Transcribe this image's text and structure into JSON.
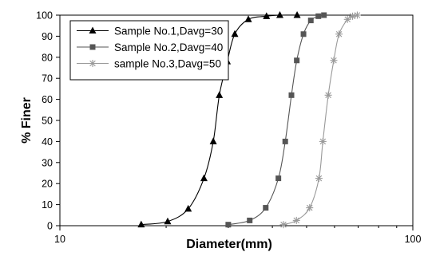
{
  "chart_data": {
    "type": "line",
    "xlabel": "Diameter(mm)",
    "ylabel": "% Finer",
    "xscale": "log",
    "xlim": [
      10,
      100
    ],
    "ylim": [
      0,
      100
    ],
    "x_ticks": [
      "10",
      "100"
    ],
    "y_ticks": [
      "0",
      "10",
      "20",
      "30",
      "40",
      "50",
      "60",
      "70",
      "80",
      "90",
      "100"
    ],
    "grid": false,
    "legend": "top-left",
    "series": [
      {
        "name": "Sample No.1,Davg=30",
        "color": "#000000",
        "marker": "triangle",
        "points": [
          {
            "x": 17.0,
            "y": 0.5
          },
          {
            "x": 20.2,
            "y": 2
          },
          {
            "x": 23.1,
            "y": 8
          },
          {
            "x": 25.6,
            "y": 22.5
          },
          {
            "x": 27.2,
            "y": 40
          },
          {
            "x": 28.3,
            "y": 62
          },
          {
            "x": 29.8,
            "y": 78
          },
          {
            "x": 31.3,
            "y": 91
          },
          {
            "x": 34.2,
            "y": 98
          },
          {
            "x": 38.5,
            "y": 99.5
          },
          {
            "x": 42.0,
            "y": 100
          },
          {
            "x": 47.0,
            "y": 100
          }
        ]
      },
      {
        "name": "Sample No.2,Davg=40",
        "color": "#555555",
        "marker": "square",
        "points": [
          {
            "x": 30.0,
            "y": 0.5
          },
          {
            "x": 34.5,
            "y": 2.5
          },
          {
            "x": 38.3,
            "y": 8.5
          },
          {
            "x": 41.6,
            "y": 22.5
          },
          {
            "x": 43.5,
            "y": 40
          },
          {
            "x": 45.3,
            "y": 62
          },
          {
            "x": 46.9,
            "y": 78.5
          },
          {
            "x": 49.0,
            "y": 91
          },
          {
            "x": 51.4,
            "y": 97.5
          },
          {
            "x": 54.0,
            "y": 99.5
          },
          {
            "x": 56.0,
            "y": 100
          }
        ]
      },
      {
        "name": "sample No.3,Davg=50",
        "color": "#999999",
        "marker": "asterisk",
        "points": [
          {
            "x": 43.0,
            "y": 0.5
          },
          {
            "x": 46.8,
            "y": 2.5
          },
          {
            "x": 51.0,
            "y": 8.5
          },
          {
            "x": 54.2,
            "y": 22.5
          },
          {
            "x": 55.6,
            "y": 40
          },
          {
            "x": 57.6,
            "y": 62
          },
          {
            "x": 59.7,
            "y": 78.5
          },
          {
            "x": 61.8,
            "y": 91
          },
          {
            "x": 65.3,
            "y": 98
          },
          {
            "x": 67.5,
            "y": 99.5
          },
          {
            "x": 69.6,
            "y": 100
          }
        ]
      }
    ]
  }
}
